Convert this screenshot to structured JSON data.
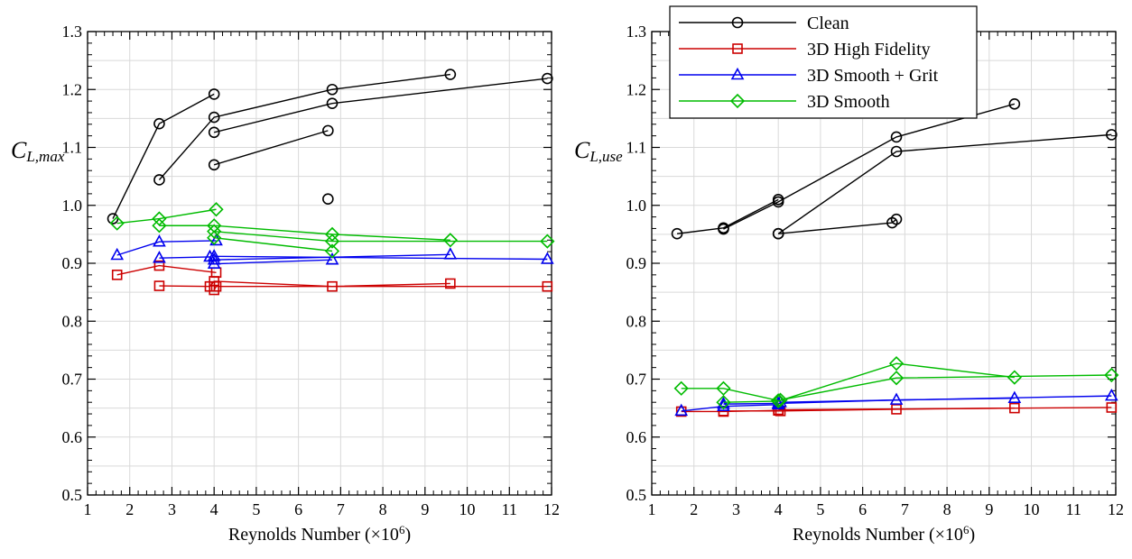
{
  "chart_data": [
    {
      "type": "line",
      "xlabel": "Reynolds Number (×10",
      "xlabel_sup": "6",
      "xlabel_close": ")",
      "ylabel_main": "C",
      "ylabel_sub": "L,max",
      "xlim": [
        1,
        12
      ],
      "ylim": [
        0.5,
        1.3
      ],
      "xticks": [
        "1",
        "2",
        "3",
        "4",
        "5",
        "6",
        "7",
        "8",
        "9",
        "10",
        "11",
        "12"
      ],
      "yticks": [
        "0.5",
        "0.6",
        "0.7",
        "0.8",
        "0.9",
        "1.0",
        "1.1",
        "1.2",
        "1.3"
      ],
      "grid": true,
      "series": [
        {
          "name": "Clean",
          "color": "#000000",
          "marker": "circle",
          "lines": [
            [
              [
                1.6,
                0.977
              ],
              [
                2.7,
                1.141
              ],
              [
                4.0,
                1.192
              ]
            ],
            [
              [
                2.7,
                1.044
              ],
              [
                4.0,
                1.152
              ],
              [
                6.8,
                1.2
              ],
              [
                9.6,
                1.226
              ]
            ],
            [
              [
                4.0,
                1.126
              ],
              [
                6.8,
                1.176
              ],
              [
                11.9,
                1.219
              ]
            ],
            [
              [
                4.0,
                1.07
              ],
              [
                6.7,
                1.129
              ]
            ],
            [
              [
                6.7,
                1.011
              ]
            ]
          ]
        },
        {
          "name": "3D High Fidelity",
          "color": "#cc0000",
          "marker": "square",
          "lines": [
            [
              [
                1.7,
                0.88
              ],
              [
                2.7,
                0.896
              ],
              [
                4.05,
                0.884
              ]
            ],
            [
              [
                2.7,
                0.861
              ],
              [
                3.9,
                0.86
              ],
              [
                4.0,
                0.869
              ],
              [
                6.8,
                0.86
              ],
              [
                9.6,
                0.865
              ]
            ],
            [
              [
                4.0,
                0.854
              ],
              [
                4.05,
                0.86
              ],
              [
                11.9,
                0.86
              ]
            ]
          ]
        },
        {
          "name": "3D Smooth + Grit",
          "color": "#0000ee",
          "marker": "triangle",
          "lines": [
            [
              [
                1.7,
                0.914
              ],
              [
                2.7,
                0.937
              ],
              [
                4.05,
                0.939
              ]
            ],
            [
              [
                2.7,
                0.909
              ],
              [
                3.9,
                0.911
              ],
              [
                4.0,
                0.899
              ],
              [
                6.8,
                0.906
              ]
            ],
            [
              [
                4.0,
                0.906
              ],
              [
                9.6,
                0.915
              ]
            ],
            [
              [
                4.0,
                0.912
              ],
              [
                11.9,
                0.907
              ]
            ]
          ]
        },
        {
          "name": "3D Smooth",
          "color": "#00bb00",
          "marker": "diamond",
          "lines": [
            [
              [
                1.7,
                0.969
              ],
              [
                2.7,
                0.977
              ],
              [
                4.05,
                0.993
              ]
            ],
            [
              [
                2.7,
                0.965
              ],
              [
                4.0,
                0.965
              ],
              [
                6.8,
                0.95
              ],
              [
                9.6,
                0.94
              ]
            ],
            [
              [
                4.0,
                0.955
              ],
              [
                6.8,
                0.938
              ],
              [
                11.9,
                0.938
              ]
            ],
            [
              [
                4.0,
                0.944
              ],
              [
                6.8,
                0.921
              ]
            ]
          ]
        }
      ]
    },
    {
      "type": "line",
      "xlabel": "Reynolds Number (×10",
      "xlabel_sup": "6",
      "xlabel_close": ")",
      "ylabel_main": "C",
      "ylabel_sub": "L,use",
      "xlim": [
        1,
        12
      ],
      "ylim": [
        0.5,
        1.3
      ],
      "xticks": [
        "1",
        "2",
        "3",
        "4",
        "5",
        "6",
        "7",
        "8",
        "9",
        "10",
        "11",
        "12"
      ],
      "yticks": [
        "0.5",
        "0.6",
        "0.7",
        "0.8",
        "0.9",
        "1.0",
        "1.1",
        "1.2",
        "1.3"
      ],
      "grid": true,
      "legend_position": "top-left",
      "series": [
        {
          "name": "Clean",
          "color": "#000000",
          "marker": "circle",
          "lines": [
            [
              [
                1.6,
                0.951
              ],
              [
                2.7,
                0.961
              ],
              [
                4.0,
                1.01
              ]
            ],
            [
              [
                2.7,
                0.959
              ],
              [
                4.0,
                1.006
              ],
              [
                6.8,
                1.118
              ],
              [
                9.6,
                1.175
              ]
            ],
            [
              [
                4.0,
                0.951
              ],
              [
                6.8,
                1.093
              ],
              [
                11.9,
                1.122
              ]
            ],
            [
              [
                4.0,
                0.951
              ],
              [
                6.7,
                0.97
              ],
              [
                6.8,
                0.976
              ]
            ]
          ]
        },
        {
          "name": "3D High Fidelity",
          "color": "#cc0000",
          "marker": "square",
          "lines": [
            [
              [
                1.7,
                0.644
              ],
              [
                2.7,
                0.644
              ],
              [
                4.0,
                0.646
              ]
            ],
            [
              [
                2.7,
                0.645
              ],
              [
                4.05,
                0.645
              ],
              [
                6.8,
                0.648
              ],
              [
                9.6,
                0.65
              ]
            ],
            [
              [
                4.0,
                0.647
              ],
              [
                11.9,
                0.651
              ]
            ]
          ]
        },
        {
          "name": "3D Smooth + Grit",
          "color": "#0000ee",
          "marker": "triangle",
          "lines": [
            [
              [
                1.7,
                0.645
              ],
              [
                2.7,
                0.653
              ],
              [
                4.0,
                0.656
              ]
            ],
            [
              [
                2.7,
                0.657
              ],
              [
                4.0,
                0.658
              ],
              [
                6.8,
                0.664
              ],
              [
                9.6,
                0.667
              ]
            ],
            [
              [
                4.05,
                0.66
              ],
              [
                11.9,
                0.671
              ]
            ]
          ]
        },
        {
          "name": "3D Smooth",
          "color": "#00bb00",
          "marker": "diamond",
          "lines": [
            [
              [
                1.7,
                0.684
              ],
              [
                2.7,
                0.684
              ],
              [
                4.0,
                0.663
              ]
            ],
            [
              [
                2.7,
                0.66
              ],
              [
                4.0,
                0.662
              ],
              [
                6.8,
                0.727
              ],
              [
                9.6,
                0.703
              ]
            ],
            [
              [
                4.05,
                0.664
              ],
              [
                6.8,
                0.702
              ],
              [
                11.9,
                0.707
              ]
            ]
          ]
        }
      ]
    }
  ]
}
